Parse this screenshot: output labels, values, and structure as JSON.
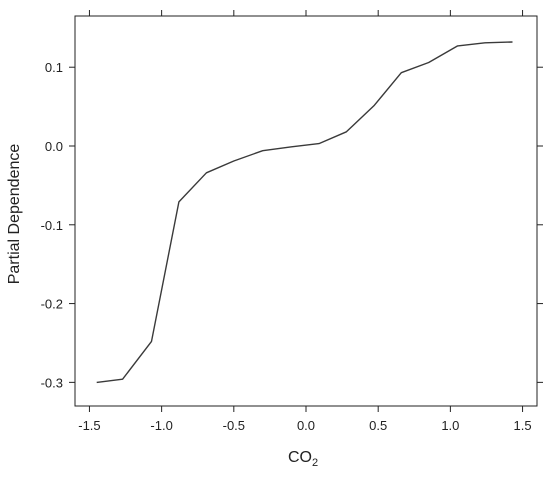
{
  "chart_data": {
    "type": "line",
    "xlabel_main": "CO",
    "xlabel_sub": "2",
    "ylabel": "Partial Dependence",
    "xlim": [
      -1.6,
      1.6
    ],
    "ylim": [
      -0.33,
      0.165
    ],
    "x_ticks": [
      -1.5,
      -1.0,
      -0.5,
      0.0,
      0.5,
      1.0,
      1.5
    ],
    "x_tick_labels": [
      "-1.5",
      "-1.0",
      "-0.5",
      "0.0",
      "0.5",
      "1.0",
      "1.5"
    ],
    "y_ticks": [
      -0.3,
      -0.2,
      -0.1,
      0.0,
      0.1
    ],
    "y_tick_labels": [
      "-0.3",
      "-0.2",
      "-0.1",
      "0.0",
      "0.1"
    ],
    "grid": false,
    "line_color": "#3a3a3a",
    "series": [
      {
        "x": [
          -1.45,
          -1.27,
          -1.07,
          -0.88,
          -0.69,
          -0.5,
          -0.3,
          -0.1,
          0.09,
          0.28,
          0.47,
          0.66,
          0.85,
          1.05,
          1.24,
          1.43
        ],
        "y": [
          -0.3,
          -0.296,
          -0.248,
          -0.071,
          -0.034,
          -0.019,
          -0.006,
          -0.001,
          0.003,
          0.018,
          0.051,
          0.093,
          0.106,
          0.127,
          0.131,
          0.132
        ]
      }
    ]
  }
}
